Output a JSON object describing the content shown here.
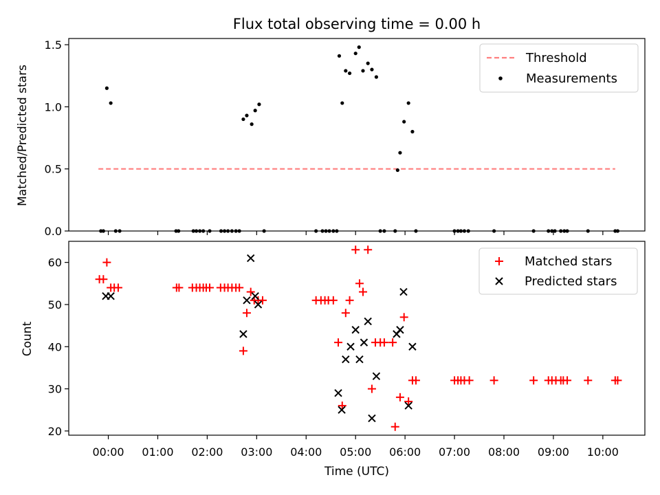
{
  "chart_data": [
    {
      "type": "scatter",
      "title": "Flux total observing time = 0.00 h",
      "xlabel": "",
      "ylabel": "Matched/Predicted stars",
      "xlim": [
        -0.8,
        10.85
      ],
      "ylim": [
        0.0,
        1.55
      ],
      "yticks": [
        0.0,
        0.5,
        1.0,
        1.5
      ],
      "yticklabels": [
        "0.0",
        "0.5",
        "1.0",
        "1.5"
      ],
      "legend": {
        "position": "top-right",
        "entries": [
          "Threshold",
          "Measurements"
        ]
      },
      "grid": false,
      "series": [
        {
          "name": "Threshold",
          "kind": "line",
          "style": "dashed",
          "color": "#ff7f7f",
          "x": [
            -0.2,
            10.25
          ],
          "y": [
            0.5,
            0.5
          ]
        },
        {
          "name": "Measurements",
          "kind": "scatter",
          "marker": "dot",
          "color": "#000000",
          "x": [
            -0.15,
            -0.1,
            -0.03,
            0.05,
            0.15,
            0.23,
            1.37,
            1.42,
            1.72,
            1.78,
            1.85,
            1.92,
            2.05,
            2.28,
            2.35,
            2.42,
            2.5,
            2.58,
            2.65,
            2.73,
            2.8,
            2.9,
            2.97,
            3.05,
            3.15,
            4.2,
            4.33,
            4.4,
            4.47,
            4.55,
            4.62,
            4.67,
            4.73,
            4.8,
            4.88,
            5.0,
            5.07,
            5.15,
            5.25,
            5.33,
            5.42,
            5.5,
            5.58,
            5.8,
            5.85,
            5.9,
            5.98,
            6.07,
            6.15,
            6.22,
            7.0,
            7.07,
            7.13,
            7.2,
            7.28,
            7.8,
            8.6,
            8.9,
            8.97,
            9.03,
            9.15,
            9.22,
            9.28,
            9.7,
            10.25,
            10.3
          ],
          "y": [
            0.0,
            0.0,
            1.15,
            1.03,
            0.0,
            0.0,
            0.0,
            0.0,
            0.0,
            0.0,
            0.0,
            0.0,
            0.0,
            0.0,
            0.0,
            0.0,
            0.0,
            0.0,
            0.0,
            0.9,
            0.93,
            0.86,
            0.97,
            1.02,
            0.0,
            0.0,
            0.0,
            0.0,
            0.0,
            0.0,
            0.0,
            1.41,
            1.03,
            1.29,
            1.27,
            1.43,
            1.48,
            1.29,
            1.35,
            1.3,
            1.24,
            0.0,
            0.0,
            0.0,
            0.49,
            0.63,
            0.88,
            1.03,
            0.8,
            0.0,
            0.0,
            0.0,
            0.0,
            0.0,
            0.0,
            0.0,
            0.0,
            0.0,
            0.0,
            0.0,
            0.0,
            0.0,
            0.0,
            0.0,
            0.0,
            0.0
          ]
        }
      ]
    },
    {
      "type": "scatter",
      "title": "",
      "xlabel": "Time (UTC)",
      "ylabel": "Count",
      "xlim": [
        -0.8,
        10.85
      ],
      "ylim": [
        19,
        65
      ],
      "xticks": [
        0,
        1,
        2,
        3,
        4,
        5,
        6,
        7,
        8,
        9,
        10
      ],
      "xticklabels": [
        "00:00",
        "01:00",
        "02:00",
        "03:00",
        "04:00",
        "05:00",
        "06:00",
        "07:00",
        "08:00",
        "09:00",
        "10:00"
      ],
      "yticks": [
        20,
        30,
        40,
        50,
        60
      ],
      "yticklabels": [
        "20",
        "30",
        "40",
        "50",
        "60"
      ],
      "legend": {
        "position": "top-right",
        "entries": [
          "Matched stars",
          "Predicted stars"
        ]
      },
      "grid": false,
      "series": [
        {
          "name": "Matched stars",
          "marker": "plus",
          "color": "#ff0000",
          "x": [
            -0.18,
            -0.1,
            -0.03,
            0.05,
            0.12,
            0.2,
            1.38,
            1.43,
            1.7,
            1.78,
            1.85,
            1.92,
            1.98,
            2.05,
            2.27,
            2.35,
            2.42,
            2.5,
            2.58,
            2.65,
            2.73,
            2.8,
            2.88,
            2.95,
            3.03,
            3.12,
            4.2,
            4.3,
            4.38,
            4.45,
            4.55,
            4.65,
            4.73,
            4.8,
            4.88,
            5.0,
            5.08,
            5.15,
            5.25,
            5.33,
            5.4,
            5.5,
            5.58,
            5.75,
            5.8,
            5.9,
            5.98,
            6.07,
            6.15,
            6.22,
            7.0,
            7.07,
            7.13,
            7.2,
            7.3,
            7.8,
            8.6,
            8.9,
            8.97,
            9.05,
            9.15,
            9.2,
            9.28,
            9.7,
            10.25,
            10.3
          ],
          "y": [
            56,
            56,
            60,
            54,
            54,
            54,
            54,
            54,
            54,
            54,
            54,
            54,
            54,
            54,
            54,
            54,
            54,
            54,
            54,
            54,
            39,
            48,
            53,
            51,
            51,
            51,
            51,
            51,
            51,
            51,
            51,
            41,
            26,
            48,
            51,
            63,
            55,
            53,
            63,
            30,
            41,
            41,
            41,
            41,
            21,
            28,
            47,
            27,
            32,
            32,
            32,
            32,
            32,
            32,
            32,
            32,
            32,
            32,
            32,
            32,
            32,
            32,
            32,
            32,
            32,
            32
          ]
        },
        {
          "name": "Predicted stars",
          "marker": "x",
          "color": "#000000",
          "x": [
            -0.05,
            0.05,
            2.73,
            2.8,
            2.88,
            2.97,
            3.03,
            4.65,
            4.72,
            4.8,
            4.9,
            5.0,
            5.08,
            5.17,
            5.25,
            5.33,
            5.42,
            5.83,
            5.9,
            5.97,
            6.07,
            6.15
          ],
          "y": [
            52,
            52,
            43,
            51,
            61,
            52,
            50,
            29,
            25,
            37,
            40,
            44,
            37,
            41,
            46,
            23,
            33,
            43,
            44,
            53,
            26,
            40
          ]
        }
      ]
    }
  ]
}
